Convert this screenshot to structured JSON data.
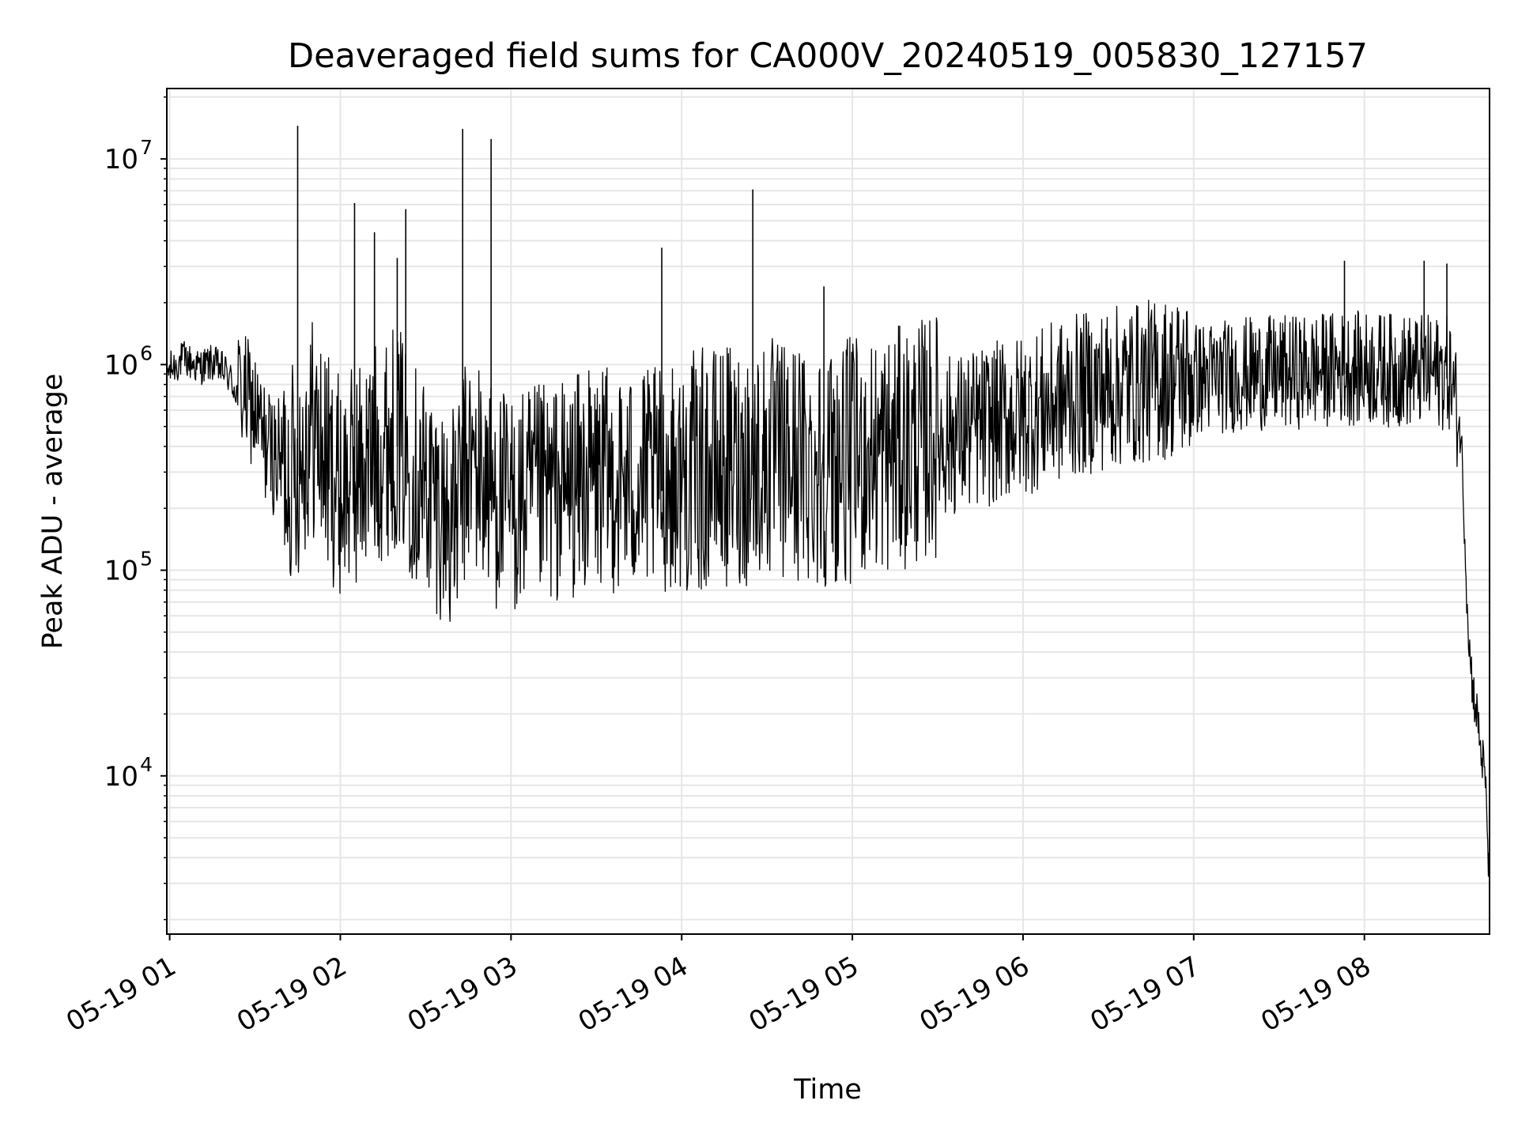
{
  "chart_data": {
    "type": "line",
    "title": "Deaveraged field sums for CA000V_20240519_005830_127157",
    "xlabel": "Time",
    "ylabel": "Peak ADU - average",
    "xscale": "time",
    "yscale": "log",
    "x_range": [
      "05-19 00:59",
      "05-19 08:44"
    ],
    "ylim": [
      1700,
      22000000
    ],
    "grid": true,
    "x_ticks": [
      "05-19 01",
      "05-19 02",
      "05-19 03",
      "05-19 04",
      "05-19 05",
      "05-19 06",
      "05-19 07",
      "05-19 08"
    ],
    "y_ticks": [
      {
        "base": "10",
        "exp": "4",
        "value": 10000
      },
      {
        "base": "10",
        "exp": "5",
        "value": 100000
      },
      {
        "base": "10",
        "exp": "6",
        "value": 1000000
      },
      {
        "base": "10",
        "exp": "7",
        "value": 10000000
      }
    ],
    "line_color": "#000000",
    "series": [
      {
        "points": [
          [
            "05-19 00:59",
            900000
          ],
          [
            "05-19 01:05",
            1050000
          ],
          [
            "05-19 01:10",
            950000
          ],
          [
            "05-19 01:15",
            1000000
          ],
          [
            "05-19 01:20",
            900000
          ],
          [
            "05-19 01:24",
            700000
          ],
          [
            "05-19 01:27",
            650000
          ],
          [
            "05-19 01:30",
            550000
          ],
          [
            "05-19 01:33",
            400000
          ],
          [
            "05-19 01:36",
            350000
          ],
          [
            "05-19 01:40",
            300000
          ],
          [
            "05-19 01:44",
            260000
          ],
          [
            "05-19 01:47",
            350000
          ],
          [
            "05-19 01:50",
            450000
          ],
          [
            "05-19 01:55",
            300000
          ],
          [
            "05-19 02:00",
            220000
          ],
          [
            "05-19 02:05",
            250000
          ],
          [
            "05-19 02:10",
            300000
          ],
          [
            "05-19 02:15",
            350000
          ],
          [
            "05-19 02:20",
            400000
          ],
          [
            "05-19 02:25",
            280000
          ],
          [
            "05-19 02:30",
            230000
          ],
          [
            "05-19 02:35",
            180000
          ],
          [
            "05-19 02:40",
            150000
          ],
          [
            "05-19 02:45",
            300000
          ],
          [
            "05-19 02:50",
            250000
          ],
          [
            "05-19 02:55",
            200000
          ],
          [
            "05-19 03:00",
            180000
          ],
          [
            "05-19 03:10",
            200000
          ],
          [
            "05-19 03:20",
            220000
          ],
          [
            "05-19 03:30",
            250000
          ],
          [
            "05-19 03:40",
            230000
          ],
          [
            "05-19 03:50",
            240000
          ],
          [
            "05-19 04:00",
            250000
          ],
          [
            "05-19 04:10",
            270000
          ],
          [
            "05-19 04:20",
            280000
          ],
          [
            "05-19 04:30",
            300000
          ],
          [
            "05-19 04:40",
            290000
          ],
          [
            "05-19 04:50",
            280000
          ],
          [
            "05-19 05:00",
            300000
          ],
          [
            "05-19 05:10",
            320000
          ],
          [
            "05-19 05:20",
            350000
          ],
          [
            "05-19 05:30",
            400000
          ],
          [
            "05-19 05:40",
            430000
          ],
          [
            "05-19 05:50",
            470000
          ],
          [
            "05-19 06:00",
            520000
          ],
          [
            "05-19 06:10",
            580000
          ],
          [
            "05-19 06:20",
            650000
          ],
          [
            "05-19 06:30",
            700000
          ],
          [
            "05-19 06:40",
            740000
          ],
          [
            "05-19 06:50",
            780000
          ],
          [
            "05-19 07:00",
            800000
          ],
          [
            "05-19 07:10",
            820000
          ],
          [
            "05-19 07:20",
            850000
          ],
          [
            "05-19 07:30",
            850000
          ],
          [
            "05-19 07:40",
            870000
          ],
          [
            "05-19 07:50",
            900000
          ],
          [
            "05-19 08:00",
            900000
          ],
          [
            "05-19 08:10",
            880000
          ],
          [
            "05-19 08:20",
            870000
          ],
          [
            "05-19 08:30",
            850000
          ],
          [
            "05-19 08:34",
            450000
          ],
          [
            "05-19 08:35",
            200000
          ],
          [
            "05-19 08:36",
            80000
          ],
          [
            "05-19 08:37",
            40000
          ],
          [
            "05-19 08:38",
            28000
          ],
          [
            "05-19 08:39",
            22000
          ],
          [
            "05-19 08:40",
            18000
          ],
          [
            "05-19 08:41",
            13000
          ],
          [
            "05-19 08:42",
            11000
          ],
          [
            "05-19 08:43",
            7000
          ],
          [
            "05-19 08:44",
            2600
          ]
        ]
      }
    ],
    "spikes": [
      [
        "05-19 01:45",
        14500000
      ],
      [
        "05-19 02:05",
        6100000
      ],
      [
        "05-19 02:12",
        4400000
      ],
      [
        "05-19 02:20",
        3300000
      ],
      [
        "05-19 02:23",
        5700000
      ],
      [
        "05-19 02:43",
        14000000
      ],
      [
        "05-19 02:53",
        12500000
      ],
      [
        "05-19 03:53",
        3700000
      ],
      [
        "05-19 04:25",
        7100000
      ],
      [
        "05-19 04:50",
        2400000
      ],
      [
        "05-19 07:53",
        3200000
      ],
      [
        "05-19 08:21",
        3200000
      ],
      [
        "05-19 08:29",
        3100000
      ]
    ]
  }
}
